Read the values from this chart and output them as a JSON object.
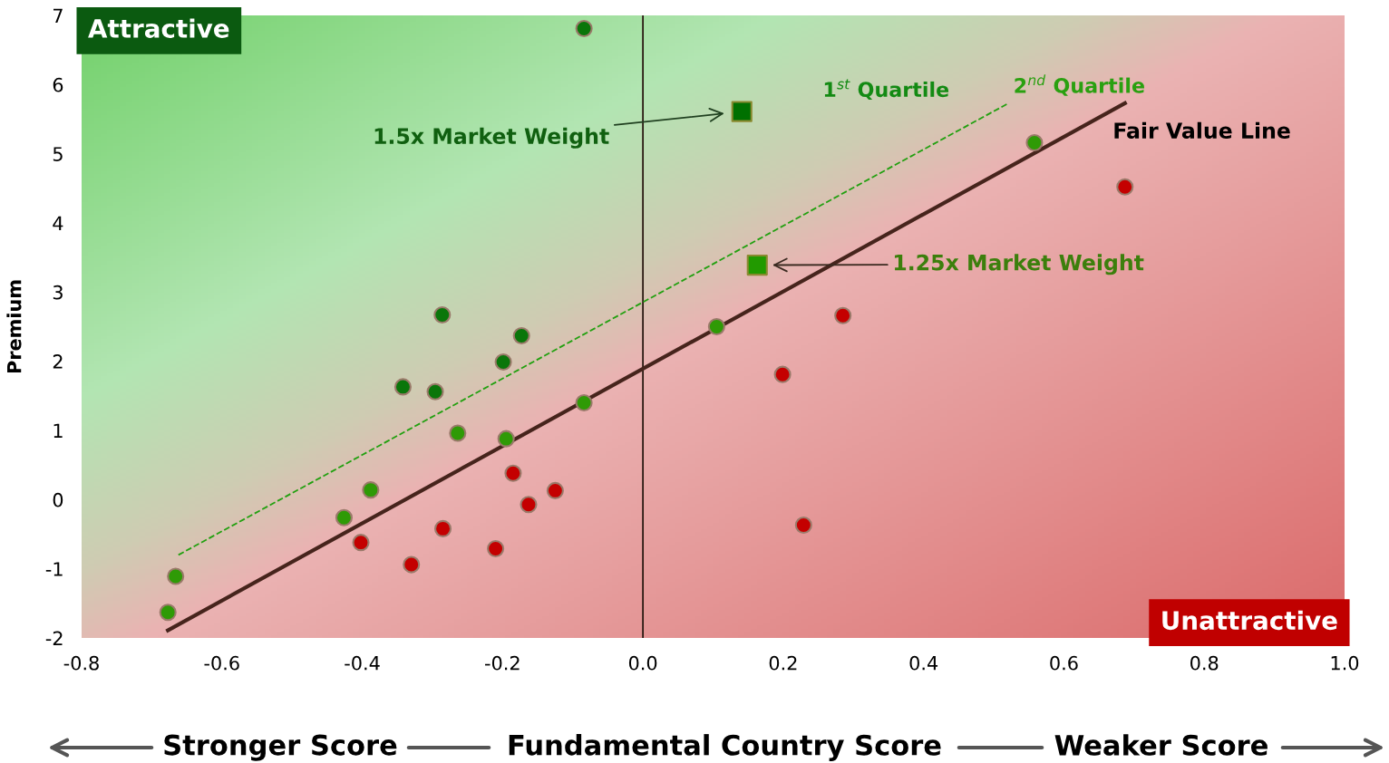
{
  "chart_data": {
    "type": "scatter",
    "ylabel": "Premium",
    "xlabel": "Fundamental Country Score",
    "xlim": [
      -0.8,
      1.0
    ],
    "ylim": [
      -2,
      7
    ],
    "xticks": [
      -0.8,
      -0.6,
      -0.4,
      -0.2,
      {
        "value": 0,
        "label": "0.0"
      },
      0.2,
      0.4,
      0.6,
      0.8,
      {
        "value": 1,
        "label": "1.0"
      }
    ],
    "yticks": [
      -2,
      -1,
      0,
      1,
      2,
      3,
      4,
      5,
      6,
      7
    ],
    "grid": false,
    "legend": false,
    "series": [
      {
        "marker": "circle",
        "color": "#0a760a",
        "x": [
          -0.084,
          -0.286,
          -0.173,
          -0.199,
          -0.342,
          -0.296
        ],
        "values": [
          6.81,
          2.67,
          2.37,
          1.99,
          1.63,
          1.56
        ]
      },
      {
        "type": "scatter",
        "marker": "circle",
        "color": "#2f9a06",
        "x": [
          0.558,
          0.105,
          -0.084,
          -0.264,
          -0.195,
          -0.388,
          -0.426,
          -0.666,
          -0.677
        ],
        "values": [
          5.16,
          2.5,
          1.4,
          0.96,
          0.88,
          0.14,
          -0.26,
          -1.11,
          -1.63
        ]
      },
      {
        "type": "scatter",
        "marker": "circle",
        "color": "#c40000",
        "x": [
          0.687,
          0.285,
          0.199,
          -0.185,
          -0.125,
          -0.163,
          -0.285,
          -0.402,
          -0.21,
          -0.33,
          0.229
        ],
        "values": [
          4.52,
          2.66,
          1.81,
          0.38,
          0.13,
          -0.07,
          -0.42,
          -0.62,
          -0.71,
          -0.94,
          -0.37
        ]
      },
      {
        "type": "scatter",
        "marker": "square",
        "color": "#007000",
        "x": [
          0.141
        ],
        "values": [
          5.61
        ]
      },
      {
        "type": "scatter",
        "marker": "square",
        "color": "#229a00",
        "x": [
          0.163
        ],
        "values": [
          3.39
        ]
      },
      {
        "type": "line",
        "line_style": "solid",
        "color": "#46241c",
        "x": [
          -0.677,
          0.687
        ],
        "values": [
          -1.89,
          5.73
        ]
      },
      {
        "type": "line",
        "line_style": "dashed",
        "color": "#22a010",
        "x": [
          -0.662,
          0.521
        ],
        "values": [
          -0.8,
          5.73
        ]
      }
    ],
    "ref_lines": [
      {
        "axis": "x",
        "value": 0,
        "color": "#2a1a12"
      }
    ],
    "annotations": [
      "Attractive",
      "Unattractive",
      "1$^{st}$ Quartile",
      "2$^{nd}$ Quartile",
      "Fair Value Line",
      "1.5x Market Weight",
      "1.25x Market Weight",
      "Stronger Score",
      "Weaker Score"
    ]
  }
}
